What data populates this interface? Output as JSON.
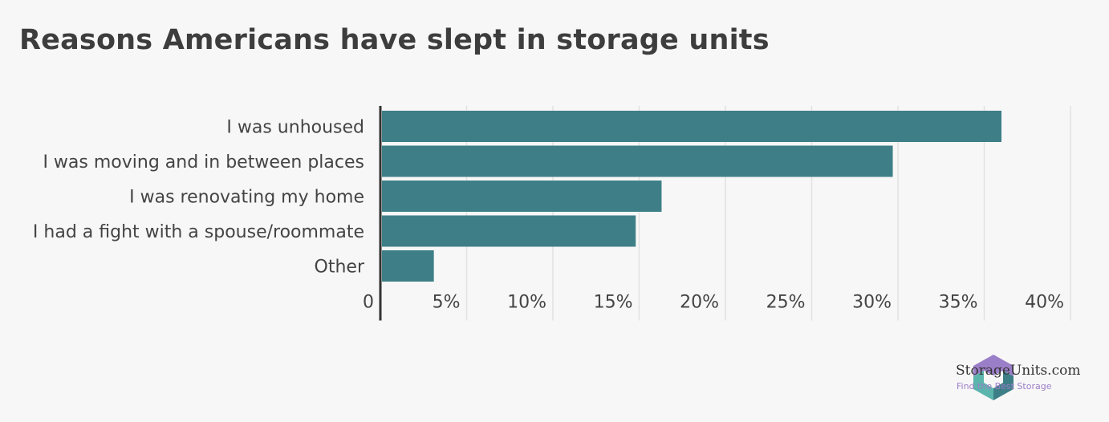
{
  "title": "Reasons Americans have slept in storage units",
  "chart_data": {
    "type": "bar",
    "orientation": "horizontal",
    "categories": [
      "I was unhoused",
      "I was moving and in between places",
      "I was renovating my home",
      "I had a fight with a spouse/roommate",
      "Other"
    ],
    "values": [
      36,
      29.7,
      16.3,
      14.8,
      3.1
    ],
    "xlim": [
      0,
      40
    ],
    "ticks": [
      0,
      5,
      10,
      15,
      20,
      25,
      30,
      35,
      40
    ],
    "tick_labels": [
      "0",
      "5%",
      "10%",
      "15%",
      "20%",
      "25%",
      "30%",
      "35%",
      "40%"
    ],
    "grid": true,
    "bar_color": "#3e7f87"
  },
  "brand": {
    "name": "StorageUnits.com",
    "tagline": "Find the Best Storage",
    "colors": {
      "purple": "#9b7ec8",
      "teal": "#5bb5ad",
      "dark_teal": "#3e7f87"
    }
  }
}
